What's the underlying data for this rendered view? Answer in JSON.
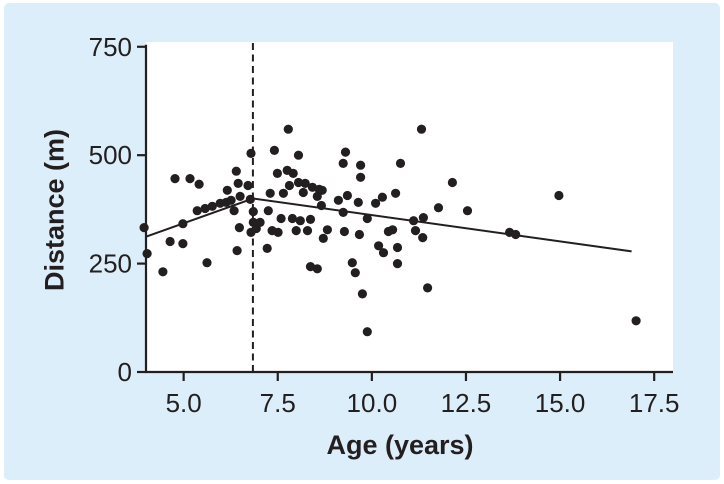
{
  "figure": {
    "page_background": "#ffffff",
    "panel_background": "#dceef9"
  },
  "chart_data": {
    "type": "scatter",
    "title": "",
    "xlabel": "Age (years)",
    "ylabel": "Distance (m)",
    "xlim": [
      4,
      18
    ],
    "ylim": [
      0,
      761
    ],
    "grid": false,
    "legend": null,
    "point_color": "#231f20",
    "line_color": "#231f20",
    "axis_color": "#231f20",
    "text_color": "#231f20",
    "x_ticks": [
      {
        "value": 5.0,
        "label": "5.0"
      },
      {
        "value": 7.5,
        "label": "7.5"
      },
      {
        "value": 10.0,
        "label": "10.0"
      },
      {
        "value": 12.5,
        "label": "12.5"
      },
      {
        "value": 15.0,
        "label": "15.0"
      },
      {
        "value": 17.5,
        "label": "17.5"
      }
    ],
    "y_ticks": [
      {
        "value": 0,
        "label": "0"
      },
      {
        "value": 250,
        "label": "250"
      },
      {
        "value": 500,
        "label": "500"
      },
      {
        "value": 750,
        "label": "750"
      }
    ],
    "points": [
      [
        3.95,
        333
      ],
      [
        4.03,
        273
      ],
      [
        4.45,
        231
      ],
      [
        4.64,
        301
      ],
      [
        4.77,
        446
      ],
      [
        4.98,
        342
      ],
      [
        4.98,
        296
      ],
      [
        5.17,
        446
      ],
      [
        5.41,
        433
      ],
      [
        5.36,
        372
      ],
      [
        5.57,
        377
      ],
      [
        5.62,
        252
      ],
      [
        5.76,
        382
      ],
      [
        5.97,
        389
      ],
      [
        6.13,
        391
      ],
      [
        6.16,
        419
      ],
      [
        6.26,
        396
      ],
      [
        6.34,
        372
      ],
      [
        6.4,
        463
      ],
      [
        6.42,
        280
      ],
      [
        6.45,
        435
      ],
      [
        6.5,
        405
      ],
      [
        6.48,
        333
      ],
      [
        6.71,
        430
      ],
      [
        6.77,
        398
      ],
      [
        6.79,
        504
      ],
      [
        6.79,
        322
      ],
      [
        6.85,
        370
      ],
      [
        6.85,
        345
      ],
      [
        6.93,
        331
      ],
      [
        7.03,
        345
      ],
      [
        7.22,
        285
      ],
      [
        7.25,
        372
      ],
      [
        7.3,
        412
      ],
      [
        7.41,
        511
      ],
      [
        7.35,
        326
      ],
      [
        7.51,
        322
      ],
      [
        7.49,
        458
      ],
      [
        7.59,
        354
      ],
      [
        7.65,
        412
      ],
      [
        7.75,
        465
      ],
      [
        7.78,
        560
      ],
      [
        7.81,
        430
      ],
      [
        7.89,
        354
      ],
      [
        7.91,
        458
      ],
      [
        7.99,
        326
      ],
      [
        8.05,
        500
      ],
      [
        8.05,
        437
      ],
      [
        8.1,
        349
      ],
      [
        8.18,
        414
      ],
      [
        8.23,
        435
      ],
      [
        8.29,
        326
      ],
      [
        8.37,
        352
      ],
      [
        8.37,
        243
      ],
      [
        8.42,
        426
      ],
      [
        8.55,
        405
      ],
      [
        8.55,
        238
      ],
      [
        8.6,
        421
      ],
      [
        8.68,
        419
      ],
      [
        8.66,
        384
      ],
      [
        8.82,
        328
      ],
      [
        8.71,
        308
      ],
      [
        9.11,
        396
      ],
      [
        9.24,
        481
      ],
      [
        9.27,
        324
      ],
      [
        9.3,
        507
      ],
      [
        9.24,
        368
      ],
      [
        9.35,
        407
      ],
      [
        9.48,
        252
      ],
      [
        9.56,
        229
      ],
      [
        9.64,
        391
      ],
      [
        9.67,
        317
      ],
      [
        9.7,
        477
      ],
      [
        9.7,
        449
      ],
      [
        9.75,
        180
      ],
      [
        9.88,
        93
      ],
      [
        9.88,
        354
      ],
      [
        10.1,
        389
      ],
      [
        10.18,
        291
      ],
      [
        10.28,
        403
      ],
      [
        10.31,
        275
      ],
      [
        10.44,
        324
      ],
      [
        10.55,
        328
      ],
      [
        10.63,
        412
      ],
      [
        10.68,
        287
      ],
      [
        10.68,
        250
      ],
      [
        10.76,
        481
      ],
      [
        11.11,
        349
      ],
      [
        11.16,
        326
      ],
      [
        11.32,
        560
      ],
      [
        11.35,
        310
      ],
      [
        11.37,
        356
      ],
      [
        11.48,
        194
      ],
      [
        11.77,
        379
      ],
      [
        12.14,
        437
      ],
      [
        12.54,
        372
      ],
      [
        13.66,
        322
      ],
      [
        13.82,
        317
      ],
      [
        14.97,
        407
      ],
      [
        17.02,
        118
      ]
    ],
    "trend_line": {
      "type": "piecewise-linear",
      "vertices": [
        [
          4.0,
          312
        ],
        [
          6.84,
          400
        ],
        [
          16.9,
          278
        ]
      ]
    },
    "breakpoint_line": {
      "orientation": "vertical",
      "x": 6.84,
      "style": "dashed"
    }
  }
}
